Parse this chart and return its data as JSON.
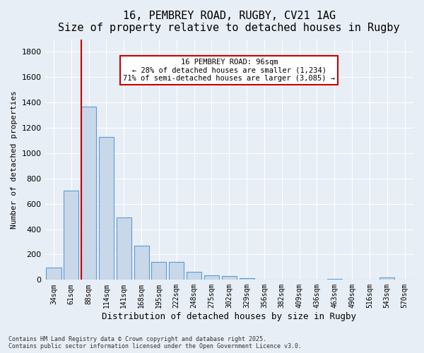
{
  "title_line1": "16, PEMBREY ROAD, RUGBY, CV21 1AG",
  "title_line2": "Size of property relative to detached houses in Rugby",
  "xlabel": "Distribution of detached houses by size in Rugby",
  "ylabel": "Number of detached properties",
  "bar_labels": [
    "34sqm",
    "61sqm",
    "88sqm",
    "114sqm",
    "141sqm",
    "168sqm",
    "195sqm",
    "222sqm",
    "248sqm",
    "275sqm",
    "302sqm",
    "329sqm",
    "356sqm",
    "382sqm",
    "409sqm",
    "436sqm",
    "463sqm",
    "490sqm",
    "516sqm",
    "543sqm",
    "570sqm"
  ],
  "bar_values": [
    95,
    705,
    1365,
    1130,
    490,
    270,
    140,
    140,
    65,
    35,
    30,
    15,
    0,
    0,
    0,
    0,
    10,
    0,
    0,
    18,
    0
  ],
  "bar_color": "#c8d8e8",
  "bar_edgecolor": "#5b9bd5",
  "vline_x": 2,
  "vline_color": "#cc0000",
  "annotation_text": "16 PEMBREY ROAD: 96sqm\n← 28% of detached houses are smaller (1,234)\n71% of semi-detached houses are larger (3,085) →",
  "annotation_box_color": "#ffffff",
  "annotation_box_edgecolor": "#cc0000",
  "ylim": [
    0,
    1900
  ],
  "yticks": [
    0,
    200,
    400,
    600,
    800,
    1000,
    1200,
    1400,
    1600,
    1800
  ],
  "background_color": "#e8eef5",
  "plot_background": "#e8eef5",
  "footnote": "Contains HM Land Registry data © Crown copyright and database right 2025.\nContains public sector information licensed under the Open Government Licence v3.0.",
  "title_fontsize": 11,
  "subtitle_fontsize": 10
}
